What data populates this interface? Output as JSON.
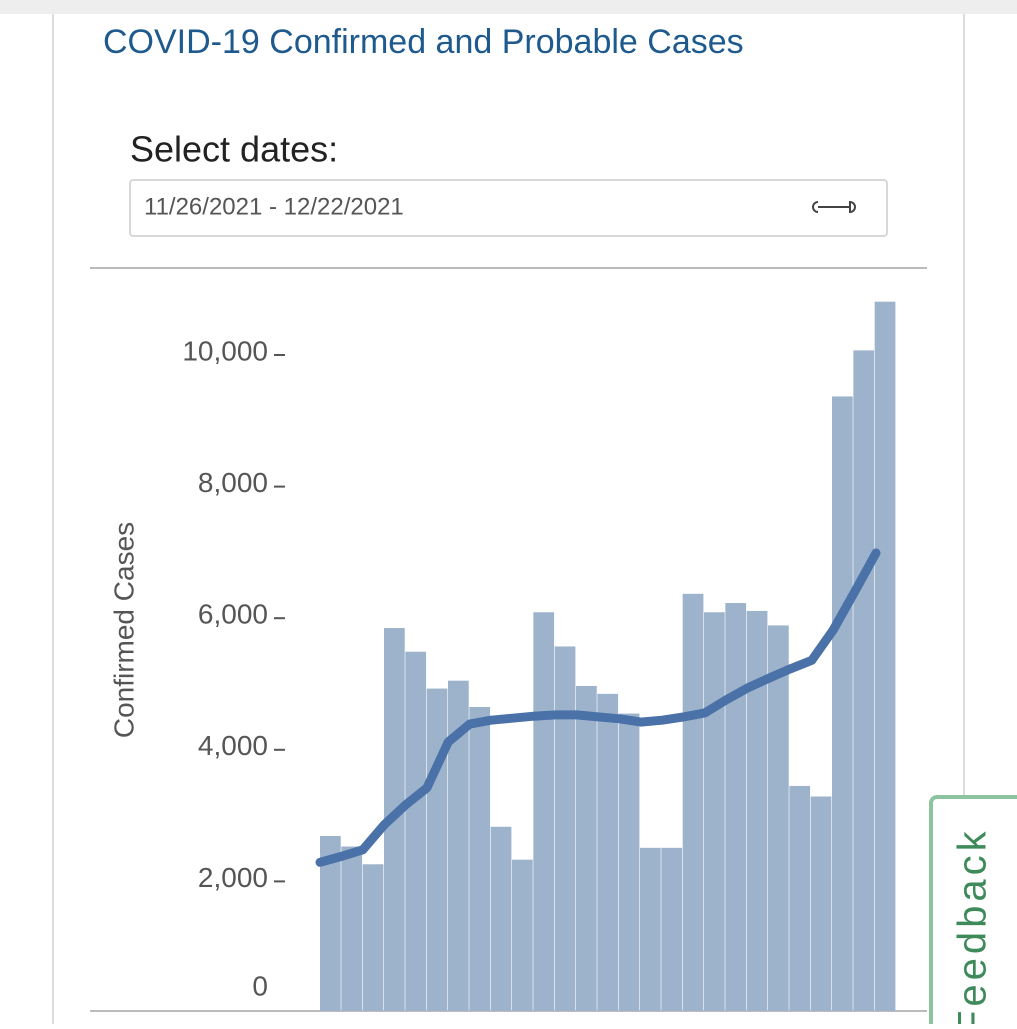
{
  "header": {
    "title": "COVID-19 Confirmed and Probable Cases"
  },
  "date_picker": {
    "label": "Select dates:",
    "value": "11/26/2021 - 12/22/2021"
  },
  "feedback": {
    "label": "Feedback"
  },
  "chart_data": {
    "type": "bar",
    "y_label": "Confirmed Cases",
    "categories": [
      null,
      null,
      null,
      null,
      null,
      null,
      null,
      null,
      null,
      null,
      null,
      null,
      null,
      null,
      null,
      null,
      null,
      null,
      null,
      null,
      null,
      null,
      null,
      null,
      null,
      null,
      null
    ],
    "series": [
      {
        "type": "bar",
        "color": "#9db3cb",
        "values": [
          2660,
          2500,
          2230,
          5820,
          5460,
          4900,
          5020,
          4620,
          2800,
          2300,
          6060,
          5540,
          4940,
          4820,
          4520,
          2480,
          2480,
          6340,
          6060,
          6200,
          6080,
          5860,
          3420,
          3260,
          9340,
          10040,
          10780
        ]
      },
      {
        "type": "line",
        "color": "#4a72a8",
        "values": [
          2260,
          2350,
          2450,
          2830,
          3130,
          3390,
          4090,
          4360,
          4420,
          4450,
          4480,
          4500,
          4500,
          4470,
          4440,
          4390,
          4420,
          4470,
          4530,
          4730,
          4910,
          5060,
          5200,
          5330,
          5790,
          6370,
          6960
        ]
      }
    ],
    "ylim": [
      0,
      10800
    ],
    "yticks": [
      0,
      {
        "value": 2000,
        "label": "2,000"
      },
      {
        "value": 4000,
        "label": "4,000"
      },
      {
        "value": 6000,
        "label": "6,000"
      },
      {
        "value": 8000,
        "label": "8,000"
      },
      {
        "value": 10000,
        "label": "10,000"
      }
    ]
  }
}
